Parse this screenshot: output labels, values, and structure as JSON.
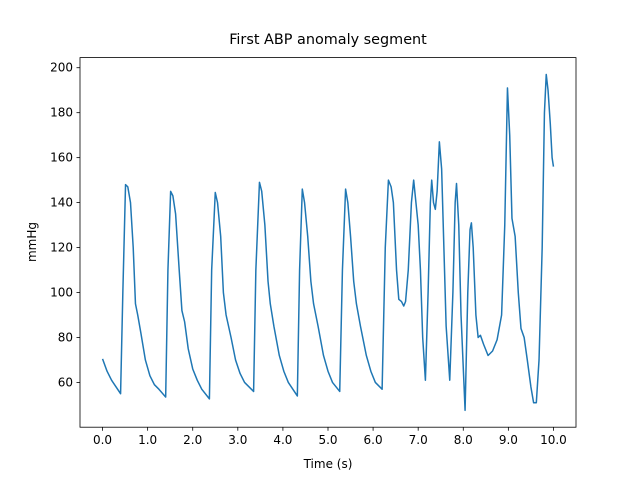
{
  "chart_data": {
    "type": "line",
    "title": "First ABP anomaly segment",
    "xlabel": "Time (s)",
    "ylabel": "mmHg",
    "x": [
      0.0,
      0.1,
      0.2,
      0.3,
      0.4,
      0.45,
      0.51,
      0.56,
      0.62,
      0.68,
      0.73,
      0.78,
      0.85,
      0.95,
      1.05,
      1.15,
      1.25,
      1.4,
      1.45,
      1.51,
      1.56,
      1.62,
      1.7,
      1.76,
      1.82,
      1.9,
      2.0,
      2.1,
      2.2,
      2.37,
      2.42,
      2.5,
      2.55,
      2.62,
      2.68,
      2.74,
      2.85,
      2.95,
      3.05,
      3.15,
      3.35,
      3.4,
      3.48,
      3.53,
      3.6,
      3.67,
      3.72,
      3.8,
      3.92,
      4.02,
      4.12,
      4.32,
      4.37,
      4.43,
      4.48,
      4.55,
      4.62,
      4.68,
      4.78,
      4.9,
      5.0,
      5.1,
      5.26,
      5.32,
      5.39,
      5.44,
      5.5,
      5.57,
      5.63,
      5.72,
      5.85,
      5.95,
      6.05,
      6.2,
      6.27,
      6.34,
      6.4,
      6.45,
      6.52,
      6.57,
      6.63,
      6.68,
      6.72,
      6.78,
      6.85,
      6.9,
      6.95,
      7.0,
      7.05,
      7.1,
      7.16,
      7.22,
      7.27,
      7.3,
      7.34,
      7.38,
      7.42,
      7.47,
      7.52,
      7.57,
      7.62,
      7.7,
      7.77,
      7.82,
      7.85,
      7.9,
      7.95,
      8.04,
      8.1,
      8.15,
      8.18,
      8.22,
      8.28,
      8.33,
      8.38,
      8.45,
      8.55,
      8.65,
      8.75,
      8.85,
      8.92,
      8.98,
      9.03,
      9.08,
      9.15,
      9.22,
      9.28,
      9.35,
      9.42,
      9.5,
      9.56,
      9.62,
      9.68,
      9.75,
      9.8,
      9.84,
      9.88,
      9.93,
      9.97,
      10.0
    ],
    "series": [
      {
        "name": "ABP",
        "color": "#1f77b4",
        "values": [
          70.5,
          65,
          61,
          58,
          55,
          100,
          148,
          147,
          140,
          120,
          95,
          90,
          82,
          70,
          63,
          59,
          57,
          53.5,
          110,
          145,
          143,
          135,
          110,
          92,
          87,
          75,
          66,
          61,
          57,
          52.7,
          110,
          144.5,
          140,
          125,
          100,
          90,
          80,
          70,
          64,
          60,
          56,
          110,
          149,
          145,
          130,
          105,
          95,
          85,
          72,
          65,
          60,
          54,
          110,
          146,
          140,
          125,
          105,
          95,
          85,
          72,
          65,
          60,
          56,
          110,
          146,
          140,
          125,
          105,
          95,
          85,
          72,
          65,
          60,
          57,
          120,
          150,
          147,
          140,
          110,
          97,
          96,
          94,
          96,
          110,
          140,
          150,
          140,
          130,
          110,
          80,
          61,
          100,
          140,
          150,
          140,
          137,
          145,
          167,
          155,
          120,
          85,
          61,
          100,
          140,
          148.5,
          130,
          90,
          47.6,
          100,
          128,
          131,
          120,
          90,
          80,
          81,
          77,
          72,
          74,
          79,
          90,
          130,
          191,
          170,
          133,
          125,
          100,
          84,
          80,
          70,
          58,
          51,
          51,
          70,
          120,
          180,
          197,
          190,
          175,
          160,
          156
        ]
      }
    ],
    "xlim": [
      -0.5,
      10.5
    ],
    "ylim": [
      40.1,
      204.5
    ],
    "xticks": [
      {
        "value": 0,
        "label": "0.0"
      },
      {
        "value": 1,
        "label": "1.0"
      },
      {
        "value": 2,
        "label": "2.0"
      },
      {
        "value": 3,
        "label": "3.0"
      },
      {
        "value": 4,
        "label": "4.0"
      },
      {
        "value": 5,
        "label": "5.0"
      },
      {
        "value": 6,
        "label": "6.0"
      },
      {
        "value": 7,
        "label": "7.0"
      },
      {
        "value": 8,
        "label": "8.0"
      },
      {
        "value": 9,
        "label": "9.0"
      },
      {
        "value": 10,
        "label": "10.0"
      }
    ],
    "yticks": [
      60,
      80,
      100,
      120,
      140,
      160,
      180,
      200
    ]
  }
}
